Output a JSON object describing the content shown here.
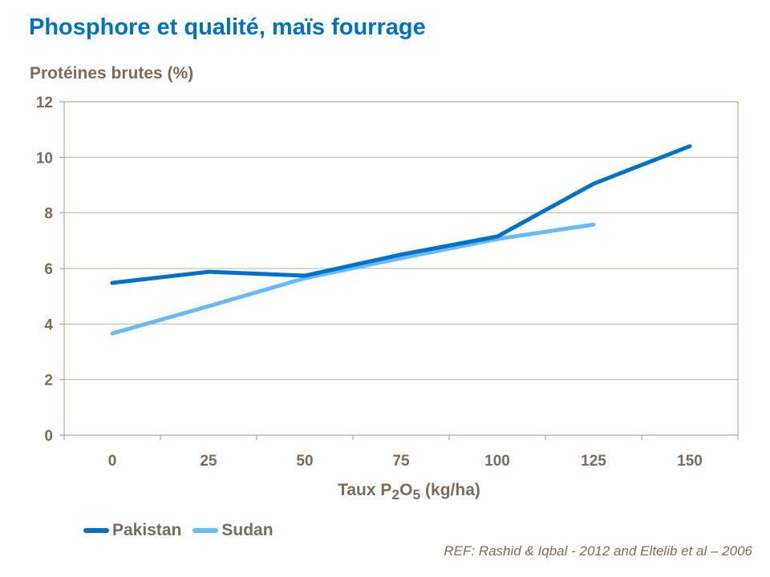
{
  "title": "Phosphore et qualité, maïs fourrage",
  "reference": "REF: Rashid & Iqbal - 2012 and Eltelib et al – 2006",
  "chart_data": {
    "type": "line",
    "ylabel": "Protéines brutes  (%)",
    "xlabel_parts": [
      "Taux P",
      "2",
      "O",
      "5",
      " (kg/ha)"
    ],
    "categories": [
      "0",
      "25",
      "50",
      "75",
      "100",
      "125",
      "150"
    ],
    "ylim": [
      0,
      12
    ],
    "yticks": [
      "0",
      "2",
      "4",
      "6",
      "8",
      "10",
      "12"
    ],
    "grid": true,
    "legend": "bottom-left",
    "series": [
      {
        "name": "Pakistan",
        "color": "#0072C6",
        "values": [
          5.48,
          5.88,
          5.74,
          6.5,
          7.15,
          9.05,
          10.4
        ]
      },
      {
        "name": "Sudan",
        "color": "#66BBFF",
        "values": [
          3.66,
          4.64,
          5.65,
          6.37,
          7.06,
          7.58,
          null
        ]
      }
    ]
  }
}
